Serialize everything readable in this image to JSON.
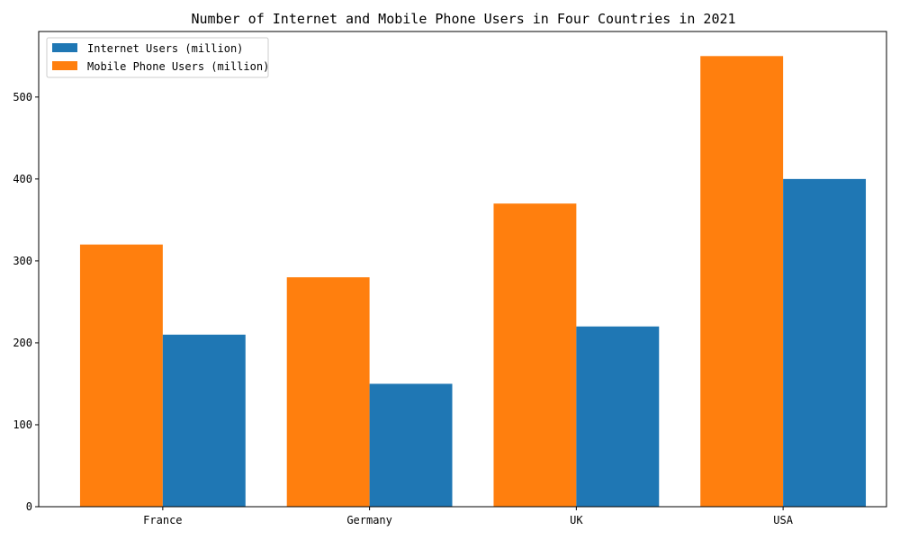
{
  "chart_data": {
    "type": "bar",
    "title": "Number of Internet and Mobile Phone Users in Four Countries in 2021",
    "xlabel": "",
    "ylabel": "",
    "categories": [
      "France",
      "Germany",
      "UK",
      "USA"
    ],
    "series": [
      {
        "name": "Internet Users (million)",
        "values": [
          210,
          150,
          220,
          400
        ],
        "color": "#1f77b4"
      },
      {
        "name": "Mobile Phone Users (million)",
        "values": [
          320,
          280,
          370,
          550
        ],
        "color": "#ff7f0e"
      }
    ],
    "ylim": [
      0,
      580
    ],
    "yticks": [
      0,
      100,
      200,
      300,
      400,
      500
    ],
    "grid": false,
    "legend_position": "top-left"
  }
}
